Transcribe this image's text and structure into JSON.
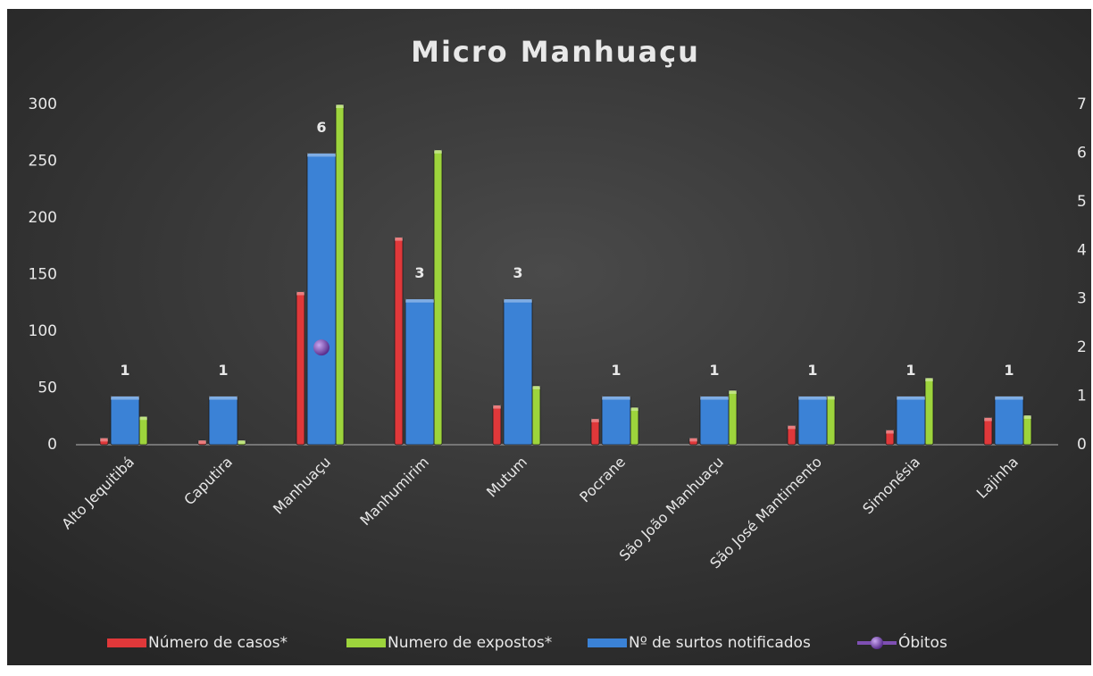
{
  "chart_data": {
    "type": "bar",
    "title": "Micro Manhuaçu",
    "categories": [
      "Alto Jequitibá",
      "Caputira",
      "Manhuaçu",
      "Manhumirim",
      "Mutum",
      "Pocrane",
      "São João Manhuaçu",
      "São José Mantimento",
      "Simonésia",
      "Lajinha"
    ],
    "series": [
      {
        "name": "Número de casos*",
        "color": "#e0383a",
        "values": [
          6,
          4,
          135,
          183,
          35,
          23,
          6,
          17,
          13,
          24
        ]
      },
      {
        "name": "Numero de expostos*",
        "color": "#9dd43c",
        "values": [
          25,
          4,
          300,
          260,
          52,
          33,
          48,
          43,
          59,
          26
        ]
      },
      {
        "name": "Nº de surtos notificados",
        "color": "#3b82d6",
        "axis": "y2",
        "values": [
          1,
          1,
          6,
          3,
          3,
          1,
          1,
          1,
          1,
          1
        ]
      },
      {
        "name": "Óbitos",
        "color": "#7e4fb3",
        "axis": "y2",
        "type": "line",
        "values": [
          null,
          null,
          2,
          null,
          null,
          null,
          null,
          null,
          null,
          null
        ]
      }
    ],
    "ylim": [
      0,
      300
    ],
    "yticks": [
      0,
      50,
      100,
      150,
      200,
      250,
      300
    ],
    "y2lim": [
      0,
      7
    ],
    "y2ticks": [
      0,
      1,
      2,
      3,
      4,
      5,
      6,
      7
    ],
    "legend": "bottom"
  }
}
